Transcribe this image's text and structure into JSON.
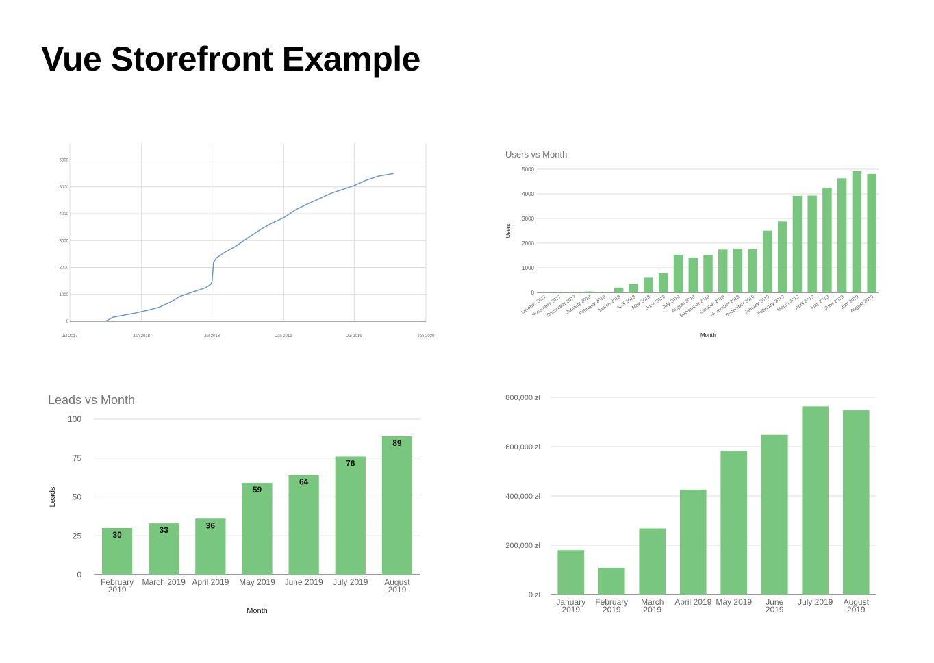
{
  "page": {
    "title": "Vue Storefront Example"
  },
  "chart_data": [
    {
      "type": "line",
      "title": "",
      "xlabel": "",
      "ylabel": "",
      "ylim": [
        0,
        6600
      ],
      "y_ticks": [
        "0",
        "1000",
        "2000",
        "3000",
        "4000",
        "5000",
        "6000"
      ],
      "x_ticks": [
        "Jul 2017",
        "Jan 2018",
        "Jul 2018",
        "Jan 2019",
        "Jul 2019",
        "Jan 2020"
      ],
      "line_color": "#6a97c9",
      "series": [
        {
          "x": [
            "2017-10-01",
            "2017-10-20",
            "2017-11-15",
            "2017-12-15",
            "2018-01-15",
            "2018-02-15",
            "2018-03-15",
            "2018-04-10",
            "2018-05-15",
            "2018-06-15",
            "2018-06-28",
            "2018-07-01",
            "2018-07-05",
            "2018-07-12",
            "2018-08-01",
            "2018-09-01",
            "2018-10-01",
            "2018-11-01",
            "2018-12-01",
            "2019-01-01",
            "2019-02-01",
            "2019-03-01",
            "2019-04-01",
            "2019-05-01",
            "2019-06-01",
            "2019-07-01",
            "2019-08-01",
            "2019-09-01",
            "2019-10-10"
          ],
          "values": [
            0,
            150,
            220,
            300,
            400,
            520,
            700,
            930,
            1100,
            1250,
            1380,
            1480,
            2200,
            2350,
            2550,
            2800,
            3100,
            3400,
            3650,
            3850,
            4150,
            4350,
            4550,
            4750,
            4900,
            5050,
            5250,
            5400,
            5500
          ]
        }
      ]
    },
    {
      "type": "bar",
      "title": "Users vs Month",
      "xlabel": "Month",
      "ylabel": "Users",
      "ylim": [
        0,
        5000
      ],
      "y_ticks": [
        "0",
        "1000",
        "2000",
        "3000",
        "4000",
        "5000"
      ],
      "bar_color": "#79c77f",
      "categories": [
        "October 2017",
        "November 2017",
        "December 2017",
        "January 2018",
        "February 2018",
        "March 2018",
        "April 2018",
        "May 2018",
        "June 2018",
        "July 2018",
        "August 2018",
        "September 2018",
        "October 2018",
        "November 2018",
        "December 2018",
        "January 2019",
        "February 2019",
        "March 2019",
        "April 2019",
        "May 2019",
        "June 2019",
        "July 2019",
        "August 2019"
      ],
      "values": [
        5,
        10,
        20,
        40,
        10,
        200,
        350,
        600,
        780,
        1530,
        1420,
        1520,
        1740,
        1780,
        1760,
        2510,
        2880,
        3920,
        3930,
        4250,
        4630,
        4920,
        4810
      ]
    },
    {
      "type": "bar",
      "title": "Leads vs Month",
      "xlabel": "Month",
      "ylabel": "Leads",
      "ylim": [
        0,
        100
      ],
      "y_ticks": [
        "0",
        "25",
        "50",
        "75",
        "100"
      ],
      "bar_color": "#79c77f",
      "categories": [
        [
          "February",
          "2019"
        ],
        [
          "March 2019"
        ],
        [
          "April 2019"
        ],
        [
          "May 2019"
        ],
        [
          "June 2019"
        ],
        [
          "July 2019"
        ],
        [
          "August",
          "2019"
        ]
      ],
      "values": [
        30,
        33,
        36,
        59,
        64,
        76,
        89
      ],
      "data_labels": [
        "30",
        "33",
        "36",
        "59",
        "64",
        "76",
        "89"
      ]
    },
    {
      "type": "bar",
      "title": "",
      "xlabel": "",
      "ylabel": "",
      "ylim": [
        0,
        800000
      ],
      "y_ticks": [
        "0 zł",
        "200,000 zł",
        "400,000 zł",
        "600,000 zł",
        "800,000 zł"
      ],
      "bar_color": "#79c77f",
      "categories": [
        [
          "January",
          "2019"
        ],
        [
          "February",
          "2019"
        ],
        [
          "March",
          "2019"
        ],
        [
          "April 2019"
        ],
        [
          "May 2019"
        ],
        [
          "June",
          "2019"
        ],
        [
          "July 2019"
        ],
        [
          "August",
          "2019"
        ]
      ],
      "values": [
        180000,
        108000,
        268000,
        425000,
        582000,
        648000,
        763000,
        747000
      ]
    }
  ]
}
